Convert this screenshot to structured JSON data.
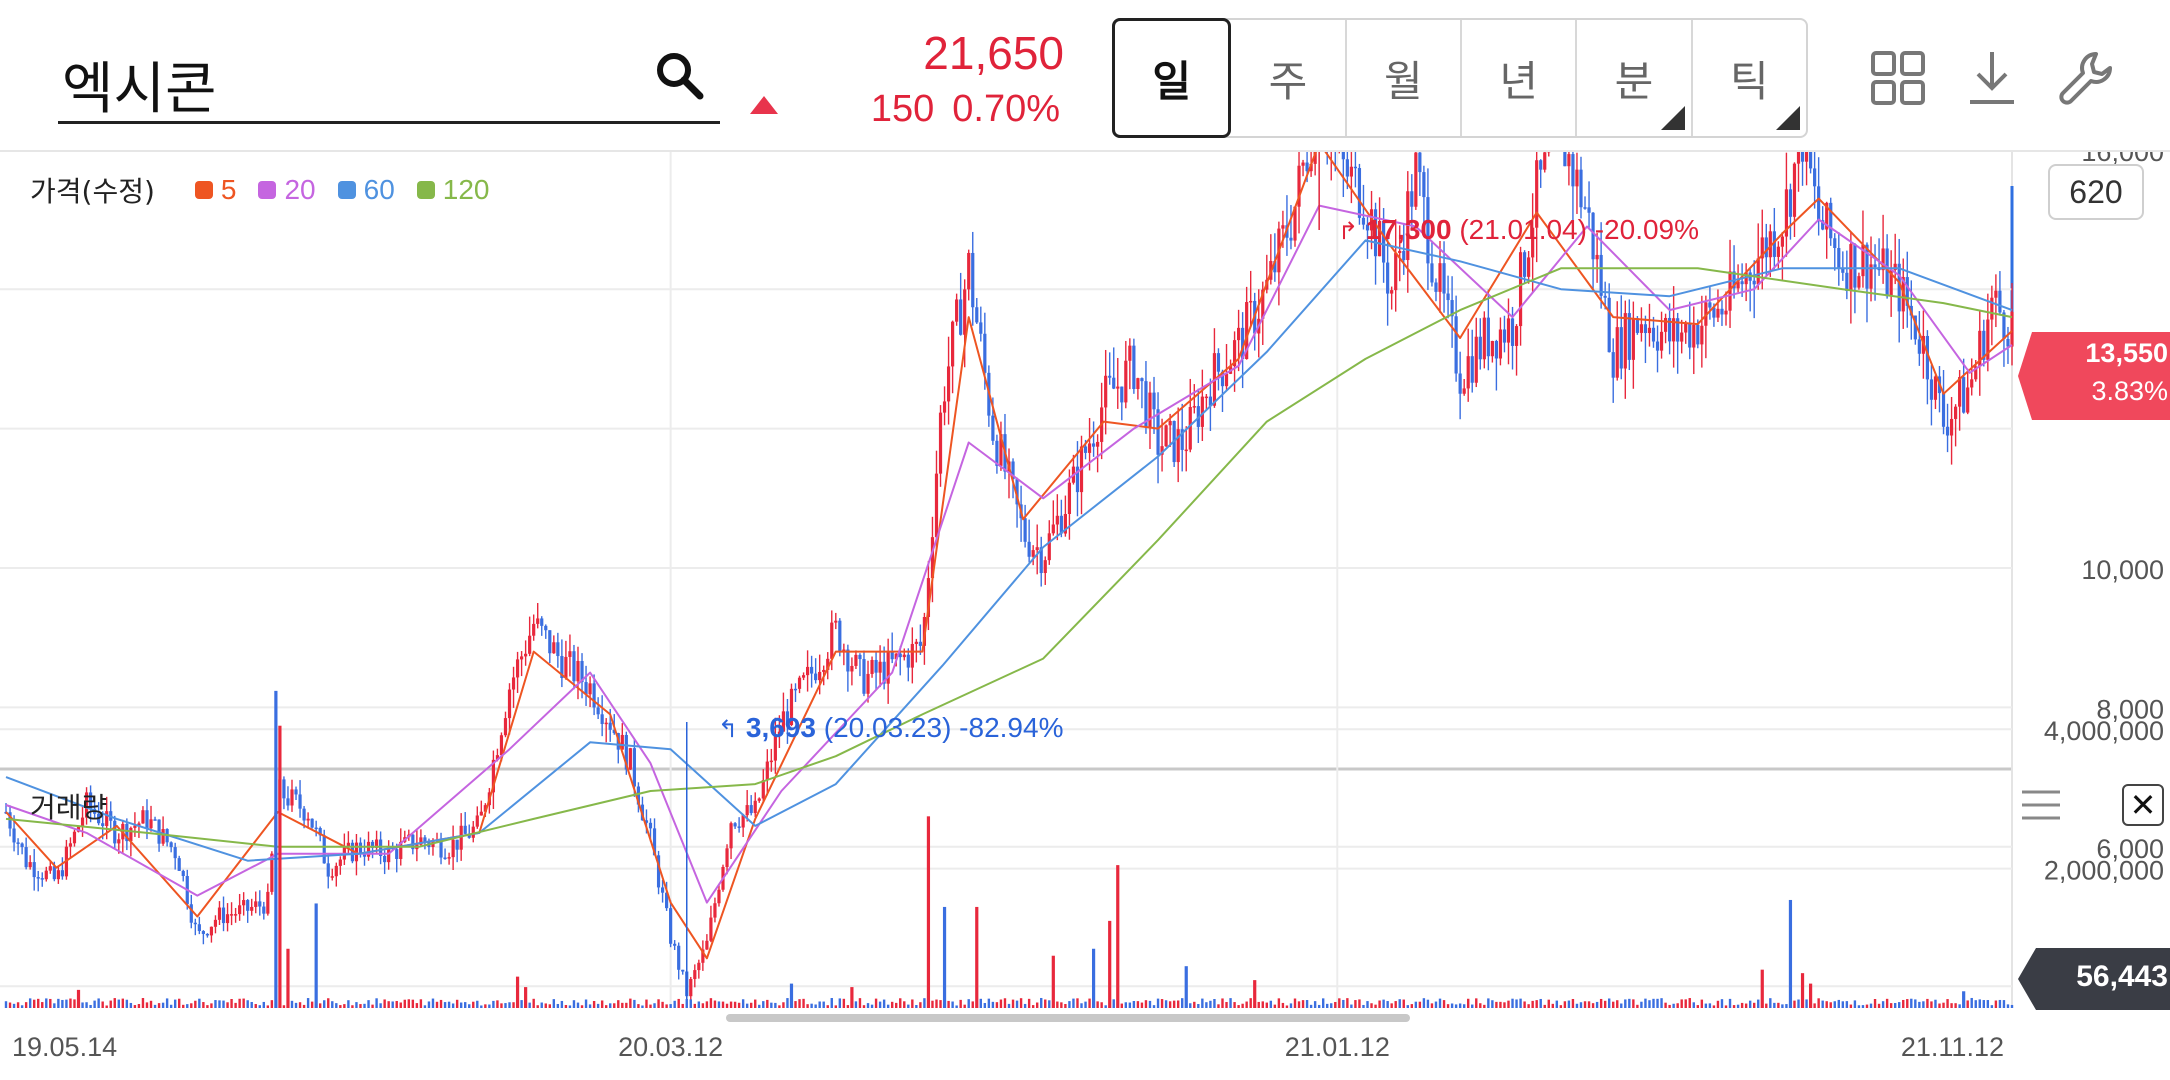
{
  "search": {
    "value": "엑시콘",
    "icon": "search-icon"
  },
  "quote": {
    "price": "21,650",
    "change": "150",
    "change_pct": "0.70%",
    "direction": "up",
    "up_color": "#e0233a"
  },
  "periods": [
    {
      "label": "일",
      "active": true,
      "submenu": false
    },
    {
      "label": "주",
      "active": false,
      "submenu": false
    },
    {
      "label": "월",
      "active": false,
      "submenu": false
    },
    {
      "label": "년",
      "active": false,
      "submenu": false
    },
    {
      "label": "분",
      "active": false,
      "submenu": true
    },
    {
      "label": "틱",
      "active": false,
      "submenu": true
    }
  ],
  "toolbar": {
    "icons": [
      "grid-layout-icon",
      "download-icon",
      "wrench-icon"
    ]
  },
  "price_panel": {
    "title": "가격(수정)",
    "legend": [
      {
        "label": "5",
        "color": "#ee5522"
      },
      {
        "label": "20",
        "color": "#c565e0"
      },
      {
        "label": "60",
        "color": "#4f92e0"
      },
      {
        "label": "120",
        "color": "#86b84a"
      }
    ],
    "count": "620",
    "current_price": "13,550",
    "current_pct": "3.83%",
    "high_annotation": {
      "price": "17,300",
      "date": "(21.01.04)",
      "pct": "-20.09%"
    },
    "low_annotation": {
      "price": "3,693",
      "date": "(20.03.23)",
      "pct": "-82.94%"
    }
  },
  "volume_panel": {
    "title": "거래량",
    "current_volume": "56,443",
    "close_label": "✕"
  },
  "x_axis_labels": [
    "19.05.14",
    "20.03.12",
    "21.01.12",
    "21.11.12"
  ],
  "chart_data": [
    {
      "type": "candlestick",
      "title": "가격(수정)",
      "ylim": [
        2800,
        17800
      ],
      "yticks": [
        4000,
        6000,
        8000,
        10000,
        12000,
        14000,
        16000
      ],
      "ytick_labels": [
        "4,000",
        "6,000",
        "8,000",
        "10,000",
        "",
        "",
        "16,000"
      ],
      "colors": {
        "up": "#e8283c",
        "down": "#3a6ee0",
        "ma5": "#ee5522",
        "ma20": "#c565e0",
        "ma60": "#4f92e0",
        "ma120": "#86b84a"
      },
      "grid": true,
      "current_price": 13550,
      "high": {
        "value": 17300,
        "date": "21.01.04"
      },
      "low": {
        "value": 3693,
        "date": "20.03.23"
      },
      "x_labels": [
        "19.05.14",
        "20.03.12",
        "21.01.12",
        "21.11.12"
      ],
      "close_series": {
        "name": "close",
        "points": [
          [
            0,
            6500
          ],
          [
            10,
            5800
          ],
          [
            25,
            5500
          ],
          [
            40,
            6600
          ],
          [
            55,
            6200
          ],
          [
            70,
            6400
          ],
          [
            85,
            5900
          ],
          [
            95,
            4700
          ],
          [
            105,
            5000
          ],
          [
            120,
            5100
          ],
          [
            130,
            5200
          ],
          [
            135,
            6800
          ],
          [
            150,
            6500
          ],
          [
            160,
            5700
          ],
          [
            175,
            6000
          ],
          [
            190,
            5900
          ],
          [
            205,
            6100
          ],
          [
            220,
            6000
          ],
          [
            235,
            6300
          ],
          [
            250,
            8300
          ],
          [
            262,
            9200
          ],
          [
            275,
            8700
          ],
          [
            290,
            8300
          ],
          [
            300,
            7800
          ],
          [
            310,
            7200
          ],
          [
            320,
            6100
          ],
          [
            330,
            4700
          ],
          [
            338,
            3900
          ],
          [
            348,
            4600
          ],
          [
            360,
            6400
          ],
          [
            372,
            6500
          ],
          [
            385,
            7800
          ],
          [
            400,
            8500
          ],
          [
            412,
            9100
          ],
          [
            425,
            8400
          ],
          [
            440,
            8600
          ],
          [
            455,
            8900
          ],
          [
            465,
            12500
          ],
          [
            478,
            14300
          ],
          [
            490,
            12000
          ],
          [
            505,
            10500
          ],
          [
            515,
            10200
          ],
          [
            530,
            11200
          ],
          [
            545,
            12400
          ],
          [
            560,
            12900
          ],
          [
            572,
            11800
          ],
          [
            585,
            11800
          ],
          [
            598,
            12700
          ],
          [
            612,
            13200
          ],
          [
            626,
            14000
          ],
          [
            640,
            15200
          ],
          [
            652,
            16800
          ],
          [
            662,
            15800
          ],
          [
            675,
            15300
          ],
          [
            688,
            14000
          ],
          [
            700,
            15700
          ],
          [
            710,
            14200
          ],
          [
            722,
            12800
          ],
          [
            735,
            13300
          ],
          [
            748,
            13500
          ],
          [
            760,
            15400
          ],
          [
            772,
            16200
          ],
          [
            785,
            15100
          ],
          [
            798,
            13100
          ],
          [
            812,
            13600
          ],
          [
            826,
            13300
          ],
          [
            840,
            13500
          ],
          [
            855,
            13800
          ],
          [
            868,
            14400
          ],
          [
            882,
            15000
          ],
          [
            892,
            16200
          ],
          [
            900,
            15000
          ],
          [
            912,
            14400
          ],
          [
            925,
            14400
          ],
          [
            940,
            14000
          ],
          [
            952,
            13200
          ],
          [
            962,
            12100
          ],
          [
            975,
            12600
          ],
          [
            986,
            13800
          ],
          [
            996,
            13500
          ]
        ]
      },
      "ma_series": [
        {
          "name": "5",
          "points": [
            [
              0,
              6500
            ],
            [
              25,
              5700
            ],
            [
              55,
              6300
            ],
            [
              95,
              5000
            ],
            [
              135,
              6500
            ],
            [
              175,
              5900
            ],
            [
              235,
              6200
            ],
            [
              262,
              8800
            ],
            [
              300,
              7900
            ],
            [
              330,
              5200
            ],
            [
              348,
              4400
            ],
            [
              372,
              6400
            ],
            [
              412,
              8800
            ],
            [
              455,
              8800
            ],
            [
              478,
              13600
            ],
            [
              505,
              10700
            ],
            [
              545,
              12100
            ],
            [
              572,
              12000
            ],
            [
              612,
              13000
            ],
            [
              652,
              16100
            ],
            [
              688,
              14600
            ],
            [
              722,
              13300
            ],
            [
              760,
              15100
            ],
            [
              798,
              13600
            ],
            [
              840,
              13500
            ],
            [
              882,
              14800
            ],
            [
              900,
              15300
            ],
            [
              940,
              14100
            ],
            [
              962,
              12500
            ],
            [
              996,
              13400
            ]
          ]
        },
        {
          "name": "20",
          "points": [
            [
              0,
              6600
            ],
            [
              40,
              6200
            ],
            [
              95,
              5300
            ],
            [
              135,
              5900
            ],
            [
              190,
              5900
            ],
            [
              250,
              7400
            ],
            [
              290,
              8500
            ],
            [
              320,
              7200
            ],
            [
              348,
              5200
            ],
            [
              385,
              6800
            ],
            [
              440,
              8500
            ],
            [
              478,
              11800
            ],
            [
              515,
              11000
            ],
            [
              560,
              12000
            ],
            [
              612,
              12900
            ],
            [
              652,
              15200
            ],
            [
              700,
              14900
            ],
            [
              748,
              13600
            ],
            [
              785,
              14900
            ],
            [
              826,
              13700
            ],
            [
              868,
              14000
            ],
            [
              900,
              15000
            ],
            [
              940,
              14200
            ],
            [
              975,
              12800
            ],
            [
              996,
              13200
            ]
          ]
        },
        {
          "name": "60",
          "points": [
            [
              0,
              7000
            ],
            [
              55,
              6400
            ],
            [
              120,
              5800
            ],
            [
              175,
              5900
            ],
            [
              235,
              6200
            ],
            [
              290,
              7500
            ],
            [
              330,
              7400
            ],
            [
              372,
              6300
            ],
            [
              412,
              6900
            ],
            [
              465,
              8600
            ],
            [
              515,
              10300
            ],
            [
              572,
              11600
            ],
            [
              626,
              13100
            ],
            [
              675,
              14700
            ],
            [
              722,
              14400
            ],
            [
              772,
              14000
            ],
            [
              826,
              13900
            ],
            [
              882,
              14300
            ],
            [
              940,
              14300
            ],
            [
              996,
              13700
            ]
          ]
        },
        {
          "name": "120",
          "points": [
            [
              0,
              6400
            ],
            [
              70,
              6200
            ],
            [
              135,
              6000
            ],
            [
              205,
              6000
            ],
            [
              262,
              6400
            ],
            [
              320,
              6800
            ],
            [
              372,
              6900
            ],
            [
              412,
              7300
            ],
            [
              455,
              7900
            ],
            [
              515,
              8700
            ],
            [
              572,
              10400
            ],
            [
              626,
              12100
            ],
            [
              675,
              13000
            ],
            [
              722,
              13700
            ],
            [
              772,
              14300
            ],
            [
              840,
              14300
            ],
            [
              912,
              14000
            ],
            [
              962,
              13800
            ],
            [
              996,
              13600
            ]
          ]
        }
      ]
    },
    {
      "type": "bar",
      "title": "거래량",
      "ylim": [
        0,
        5000000
      ],
      "yticks": [
        2000000,
        4000000
      ],
      "ytick_labels": [
        "2,000,000",
        "4,000,000"
      ],
      "current_volume": 56443,
      "spikes": [
        [
          36,
          260000
        ],
        [
          134,
          4550000
        ],
        [
          136,
          4050000
        ],
        [
          140,
          850000
        ],
        [
          154,
          1500000
        ],
        [
          254,
          450000
        ],
        [
          258,
          300000
        ],
        [
          390,
          350000
        ],
        [
          420,
          300000
        ],
        [
          458,
          2750000
        ],
        [
          466,
          1450000
        ],
        [
          482,
          1450000
        ],
        [
          520,
          750000
        ],
        [
          540,
          850000
        ],
        [
          548,
          1250000
        ],
        [
          552,
          2050000
        ],
        [
          586,
          600000
        ],
        [
          620,
          400000
        ],
        [
          872,
          550000
        ],
        [
          886,
          1550000
        ],
        [
          892,
          500000
        ],
        [
          896,
          350000
        ],
        [
          972,
          240000
        ]
      ],
      "baseline": 90000
    }
  ]
}
